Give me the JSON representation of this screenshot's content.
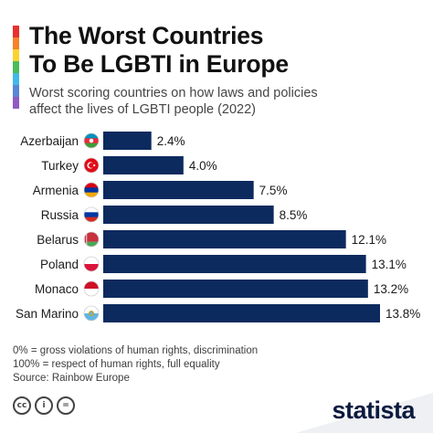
{
  "header": {
    "title_line1": "The Worst Countries",
    "title_line2": "To Be LGBTI in Europe",
    "subtitle_line1": "Worst scoring countries on how laws and policies",
    "subtitle_line2": "affect the lives of LGBTI people (2022)"
  },
  "rainbow_colors": [
    "#e8312f",
    "#f5822a",
    "#fbd330",
    "#4cbb5a",
    "#45b7e8",
    "#5a86d6",
    "#8f5bc2"
  ],
  "bar_color": "#0d2a5e",
  "chart_data": {
    "type": "bar",
    "orientation": "horizontal",
    "categories": [
      "Azerbaijan",
      "Turkey",
      "Armenia",
      "Russia",
      "Belarus",
      "Poland",
      "Monaco",
      "San Marino"
    ],
    "values": [
      2.4,
      4.0,
      7.5,
      8.5,
      12.1,
      13.1,
      13.2,
      13.8
    ],
    "value_labels": [
      "2.4%",
      "4.0%",
      "7.5%",
      "8.5%",
      "12.1%",
      "13.1%",
      "13.2%",
      "13.8%"
    ],
    "flags": [
      "azerbaijan-flag-icon",
      "turkey-flag-icon",
      "armenia-flag-icon",
      "russia-flag-icon",
      "belarus-flag-icon",
      "poland-flag-icon",
      "monaco-flag-icon",
      "san-marino-flag-icon"
    ],
    "xlim": [
      0,
      13.8
    ],
    "grid": false,
    "legend": "none"
  },
  "notes": {
    "line1": "0% = gross violations of human rights, discrimination",
    "line2": "100% = respect of human rights, full equality",
    "source": "Source: Rainbow Europe"
  },
  "license": {
    "cc": "cc",
    "by": "i",
    "nd": "="
  },
  "brand": "statista"
}
